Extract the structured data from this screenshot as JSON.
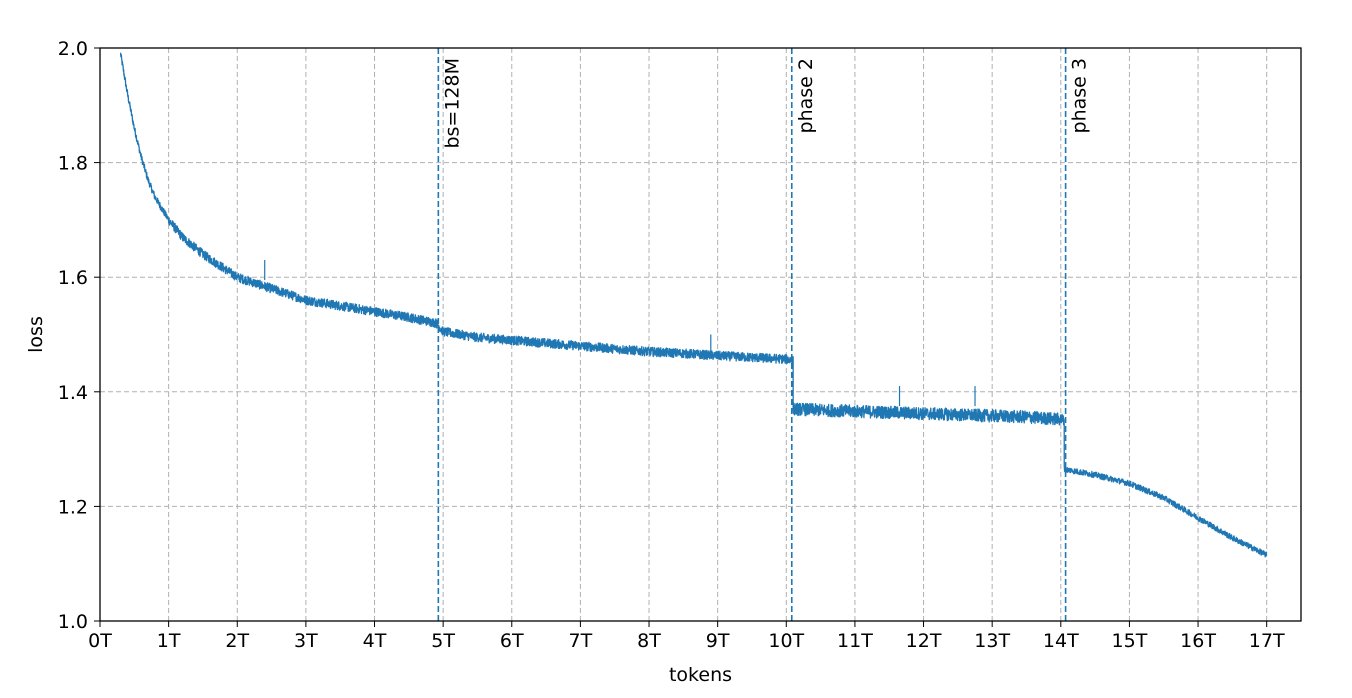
{
  "chart_data": {
    "type": "line",
    "title": "",
    "xlabel": "tokens",
    "ylabel": "loss",
    "xlim": [
      0,
      17.5
    ],
    "ylim": [
      1.0,
      2.0
    ],
    "x_ticks": [
      0,
      1,
      2,
      3,
      4,
      5,
      6,
      7,
      8,
      9,
      10,
      11,
      12,
      13,
      14,
      15,
      16,
      17
    ],
    "x_tick_labels": [
      "0T",
      "1T",
      "2T",
      "3T",
      "4T",
      "5T",
      "6T",
      "7T",
      "8T",
      "9T",
      "10T",
      "11T",
      "12T",
      "13T",
      "14T",
      "15T",
      "16T",
      "17T"
    ],
    "y_ticks": [
      1.0,
      1.2,
      1.4,
      1.6,
      1.8,
      2.0
    ],
    "y_tick_labels": [
      "1.0",
      "1.2",
      "1.4",
      "1.6",
      "1.8",
      "2.0"
    ],
    "grid": true,
    "line_color": "#1f77b4",
    "series": [
      {
        "x": [
          0.3,
          0.4,
          0.5,
          0.6,
          0.7,
          0.8,
          1.0,
          1.2,
          1.5,
          2.0,
          2.5,
          3.0,
          3.5,
          4.0,
          4.5,
          4.9,
          5.0,
          5.5,
          6.0,
          6.5,
          7.0,
          7.5,
          8.0,
          8.5,
          9.0,
          9.5,
          10.0,
          10.1,
          10.1,
          10.5,
          11.0,
          11.5,
          12.0,
          12.5,
          13.0,
          13.5,
          14.0,
          14.05,
          14.05,
          14.5,
          15.0,
          15.5,
          16.0,
          16.5,
          17.0
        ],
        "y": [
          1.99,
          1.92,
          1.86,
          1.81,
          1.77,
          1.74,
          1.7,
          1.67,
          1.64,
          1.6,
          1.58,
          1.56,
          1.55,
          1.54,
          1.53,
          1.52,
          1.505,
          1.495,
          1.49,
          1.485,
          1.48,
          1.475,
          1.47,
          1.467,
          1.463,
          1.46,
          1.457,
          1.455,
          1.37,
          1.368,
          1.366,
          1.364,
          1.362,
          1.36,
          1.358,
          1.356,
          1.352,
          1.35,
          1.265,
          1.255,
          1.24,
          1.215,
          1.18,
          1.145,
          1.115
        ]
      }
    ],
    "annotations": [
      {
        "x": 4.93,
        "label": "bs=128M"
      },
      {
        "x": 10.08,
        "label": "phase 2"
      },
      {
        "x": 14.07,
        "label": "phase 3"
      }
    ]
  }
}
